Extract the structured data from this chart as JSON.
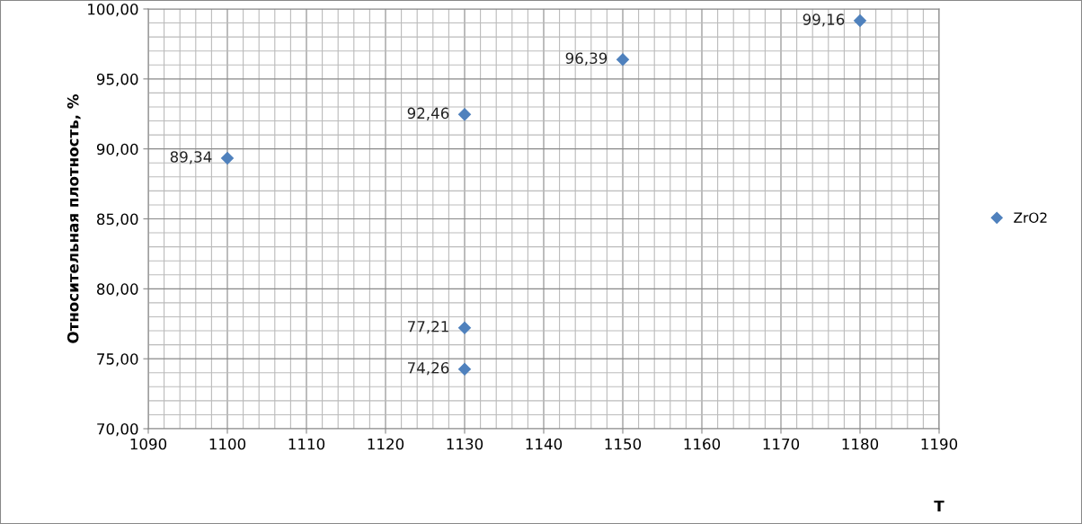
{
  "chart_data": {
    "type": "scatter",
    "xlabel": "T",
    "ylabel": "Относительная плотность, %",
    "x": [
      1100,
      1130,
      1130,
      1130,
      1150,
      1180
    ],
    "series": [
      {
        "name": "ZrO2",
        "color": "#4f81bd",
        "values": [
          89.34,
          92.46,
          77.21,
          74.26,
          96.39,
          99.16
        ],
        "value_labels": [
          "89,34",
          "92,46",
          "77,21",
          "74,26",
          "96,39",
          "99,16"
        ]
      }
    ],
    "xlim": [
      1090,
      1190
    ],
    "xticks": [
      1090,
      1100,
      1110,
      1120,
      1130,
      1140,
      1150,
      1160,
      1170,
      1180,
      1190
    ],
    "ylim": [
      70,
      100
    ],
    "yticks": [
      {
        "value": 70,
        "label": "70,00"
      },
      {
        "value": 75,
        "label": "75,00"
      },
      {
        "value": 80,
        "label": "80,00"
      },
      {
        "value": 85,
        "label": "85,00"
      },
      {
        "value": 90,
        "label": "90,00"
      },
      {
        "value": 95,
        "label": "95,00"
      },
      {
        "value": 100,
        "label": "100,00"
      }
    ],
    "grid": true,
    "legend": "right",
    "marker": "diamond"
  }
}
